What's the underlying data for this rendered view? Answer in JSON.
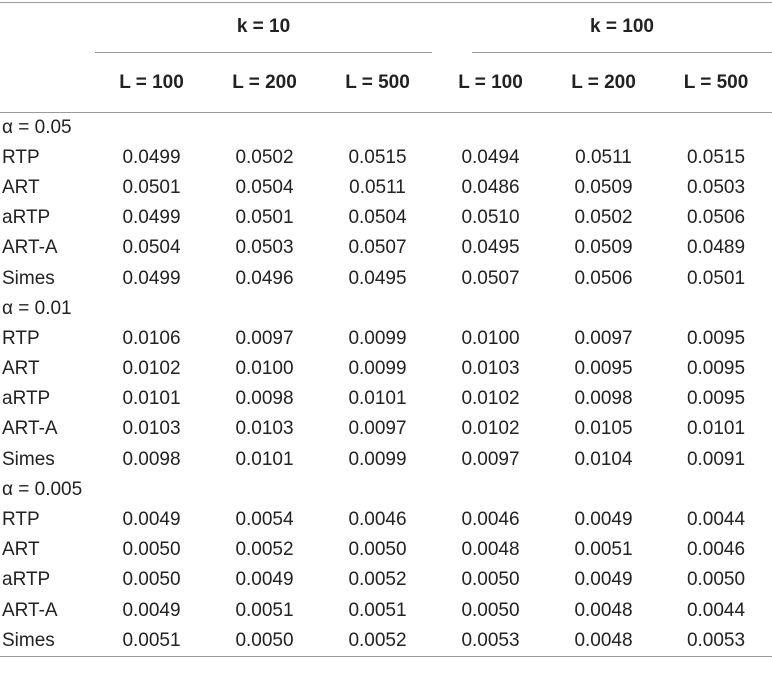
{
  "table": {
    "group_headers": [
      "k = 10",
      "k = 100"
    ],
    "column_headers": [
      "L = 100",
      "L = 200",
      "L = 500",
      "L = 100",
      "L = 200",
      "L = 500"
    ],
    "sections": [
      {
        "label": "α = 0.05",
        "rows": [
          {
            "name": "RTP",
            "values": [
              "0.0499",
              "0.0502",
              "0.0515",
              "0.0494",
              "0.0511",
              "0.0515"
            ]
          },
          {
            "name": "ART",
            "values": [
              "0.0501",
              "0.0504",
              "0.0511",
              "0.0486",
              "0.0509",
              "0.0503"
            ]
          },
          {
            "name": "aRTP",
            "values": [
              "0.0499",
              "0.0501",
              "0.0504",
              "0.0510",
              "0.0502",
              "0.0506"
            ]
          },
          {
            "name": "ART-A",
            "values": [
              "0.0504",
              "0.0503",
              "0.0507",
              "0.0495",
              "0.0509",
              "0.0489"
            ]
          },
          {
            "name": "Simes",
            "values": [
              "0.0499",
              "0.0496",
              "0.0495",
              "0.0507",
              "0.0506",
              "0.0501"
            ]
          }
        ]
      },
      {
        "label": "α = 0.01",
        "rows": [
          {
            "name": "RTP",
            "values": [
              "0.0106",
              "0.0097",
              "0.0099",
              "0.0100",
              "0.0097",
              "0.0095"
            ]
          },
          {
            "name": "ART",
            "values": [
              "0.0102",
              "0.0100",
              "0.0099",
              "0.0103",
              "0.0095",
              "0.0095"
            ]
          },
          {
            "name": "aRTP",
            "values": [
              "0.0101",
              "0.0098",
              "0.0101",
              "0.0102",
              "0.0098",
              "0.0095"
            ]
          },
          {
            "name": "ART-A",
            "values": [
              "0.0103",
              "0.0103",
              "0.0097",
              "0.0102",
              "0.0105",
              "0.0101"
            ]
          },
          {
            "name": "Simes",
            "values": [
              "0.0098",
              "0.0101",
              "0.0099",
              "0.0097",
              "0.0104",
              "0.0091"
            ]
          }
        ]
      },
      {
        "label": "α = 0.005",
        "rows": [
          {
            "name": "RTP",
            "values": [
              "0.0049",
              "0.0054",
              "0.0046",
              "0.0046",
              "0.0049",
              "0.0044"
            ]
          },
          {
            "name": "ART",
            "values": [
              "0.0050",
              "0.0052",
              "0.0050",
              "0.0048",
              "0.0051",
              "0.0046"
            ]
          },
          {
            "name": "aRTP",
            "values": [
              "0.0050",
              "0.0049",
              "0.0052",
              "0.0050",
              "0.0049",
              "0.0050"
            ]
          },
          {
            "name": "ART-A",
            "values": [
              "0.0049",
              "0.0051",
              "0.0051",
              "0.0050",
              "0.0048",
              "0.0044"
            ]
          },
          {
            "name": "Simes",
            "values": [
              "0.0051",
              "0.0050",
              "0.0052",
              "0.0053",
              "0.0048",
              "0.0053"
            ]
          }
        ]
      }
    ]
  }
}
